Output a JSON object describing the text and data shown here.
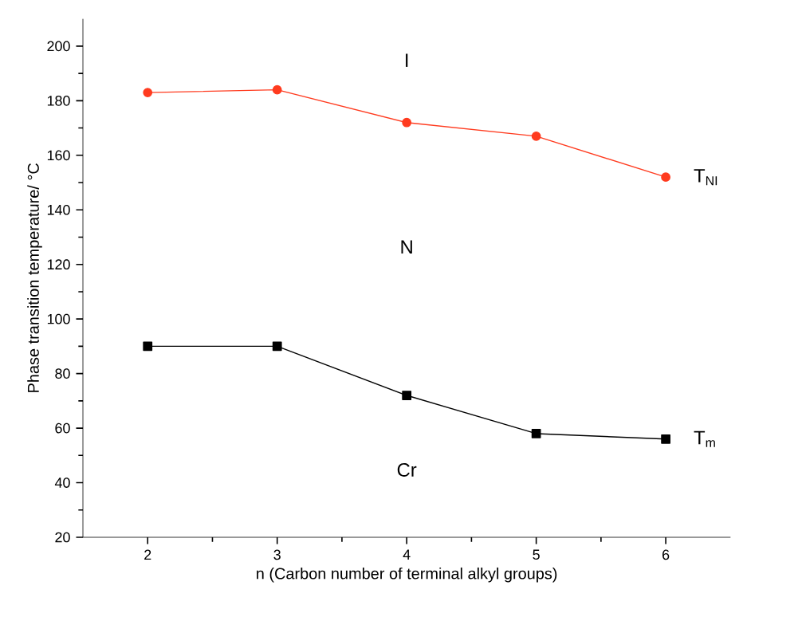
{
  "chart_data": {
    "type": "line",
    "xlabel": "n (Carbon number of terminal alkyl groups)",
    "ylabel": "Phase transition temperature/ °C",
    "x": [
      2,
      3,
      4,
      5,
      6
    ],
    "series": [
      {
        "name": "T$_{NI}$",
        "color": "#ff3b1f",
        "marker": "circle",
        "values": [
          183,
          184,
          172,
          167,
          152
        ]
      },
      {
        "name": "T$_{m}$",
        "color": "#000000",
        "marker": "square",
        "values": [
          90,
          90,
          72,
          58,
          56
        ]
      }
    ],
    "xlim": [
      1.5,
      6.5
    ],
    "xticks": [
      2,
      3,
      4,
      5,
      6
    ],
    "ylim": [
      20,
      210
    ],
    "yticks": [
      20,
      40,
      60,
      80,
      100,
      120,
      140,
      160,
      180,
      200
    ],
    "grid": false,
    "legend": false,
    "annotations": [
      "I",
      "N",
      "Cr"
    ]
  }
}
